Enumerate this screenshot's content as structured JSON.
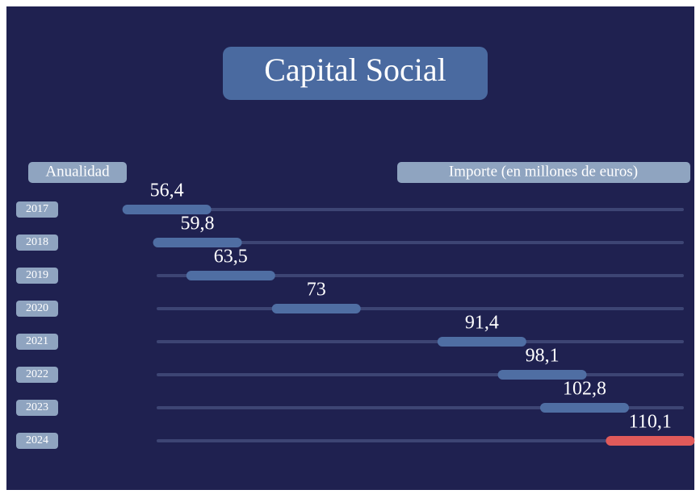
{
  "chart_data": {
    "type": "segment",
    "title": "Capital Social",
    "category_label": "Anualidad",
    "value_label": "Importe (en millones de euros)",
    "categories": [
      "2017",
      "2018",
      "2019",
      "2020",
      "2021",
      "2022",
      "2023",
      "2024"
    ],
    "values": [
      56.4,
      59.8,
      63.5,
      73,
      91.4,
      98.1,
      102.8,
      110.1
    ],
    "value_labels": [
      "56,4",
      "59,8",
      "63,5",
      "73",
      "91,4",
      "98,1",
      "102,8",
      "110,1"
    ],
    "colors": [
      "#4f6ea3",
      "#4f6ea3",
      "#4f6ea3",
      "#4f6ea3",
      "#4f6ea3",
      "#4f6ea3",
      "#4f6ea3",
      "#e05a5a"
    ],
    "xlim": [
      51.5,
      115
    ]
  }
}
